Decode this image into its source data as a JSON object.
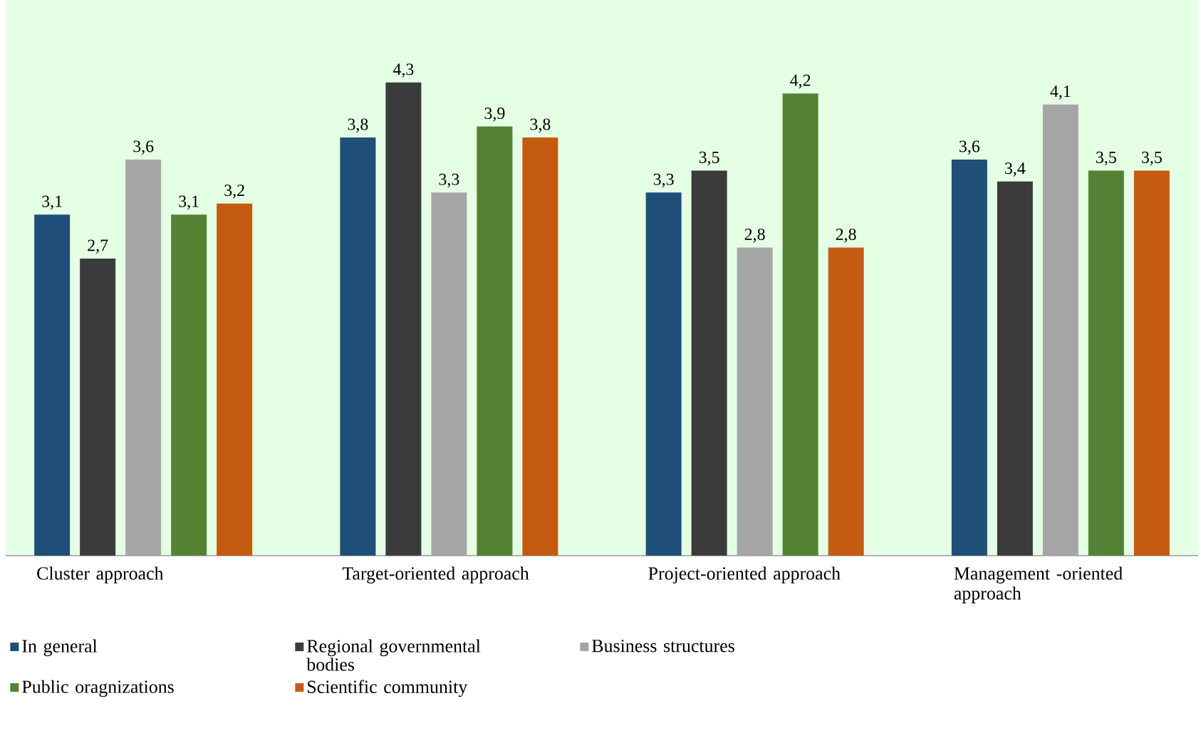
{
  "chart_data": {
    "type": "bar",
    "categories": [
      "Cluster approach",
      "Target-oriented approach",
      "Project-oriented approach",
      "Management -oriented approach"
    ],
    "ylim": [
      0,
      5.05
    ],
    "legend": "bottom",
    "series": [
      {
        "name": "In general",
        "color": "#1f4e79",
        "values": [
          3.1,
          3.8,
          3.3,
          3.6
        ],
        "value_labels": [
          "3,1",
          "3,8",
          "3,3",
          "3,6"
        ]
      },
      {
        "name": "Regional governmental bodies",
        "color": "#3b3b3b",
        "values": [
          2.7,
          4.3,
          3.5,
          3.4
        ],
        "value_labels": [
          "2,7",
          "4,3",
          "3,5",
          "3,4"
        ]
      },
      {
        "name": "Business structures",
        "color": "#a6a6a6",
        "values": [
          3.6,
          3.3,
          2.8,
          4.1
        ],
        "value_labels": [
          "3,6",
          "3,3",
          "2,8",
          "4,1"
        ]
      },
      {
        "name": "Public oragnizations",
        "color": "#548235",
        "values": [
          3.1,
          3.9,
          4.2,
          3.5
        ],
        "value_labels": [
          "3,1",
          "3,9",
          "4,2",
          "3,5"
        ]
      },
      {
        "name": "Scientific community",
        "color": "#c55a11",
        "values": [
          3.2,
          3.8,
          2.8,
          3.5
        ],
        "value_labels": [
          "3,2",
          "3,8",
          "2,8",
          "3,5"
        ]
      }
    ]
  }
}
